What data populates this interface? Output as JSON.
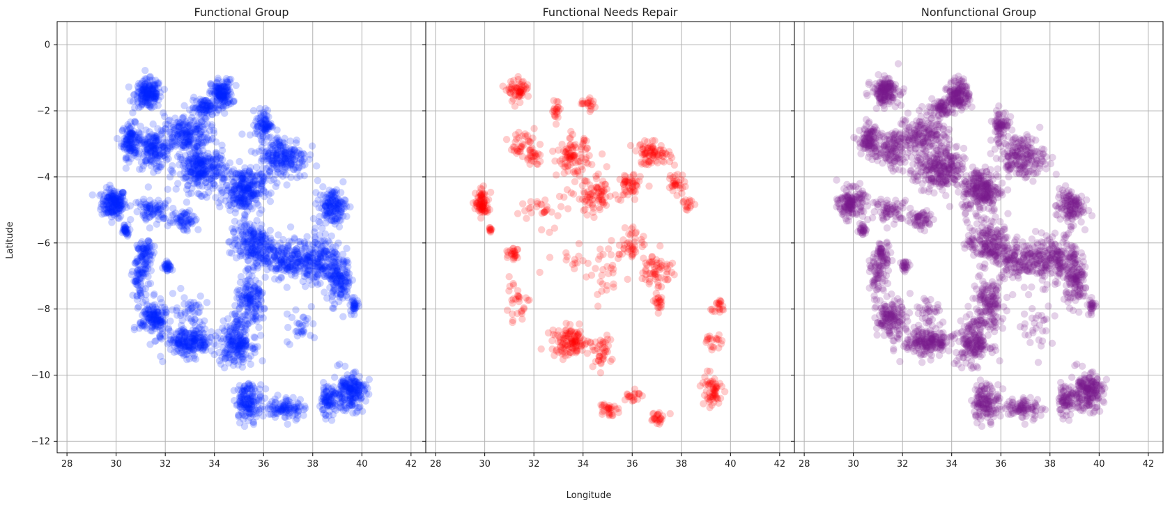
{
  "chart_data": [
    {
      "type": "scatter",
      "title": "Functional Group",
      "color": "#0022ff",
      "series": [
        {
          "regions": [
            [
              29.9,
              -4.8,
              0.45,
              0.4,
              180
            ],
            [
              30.6,
              -2.9,
              0.35,
              0.45,
              120
            ],
            [
              31.3,
              -1.5,
              0.5,
              0.4,
              180
            ],
            [
              31.5,
              -3.2,
              0.6,
              0.5,
              150
            ],
            [
              32.8,
              -2.7,
              0.9,
              0.5,
              200
            ],
            [
              34.3,
              -1.5,
              0.4,
              0.4,
              150
            ],
            [
              33.6,
              -1.9,
              0.5,
              0.25,
              80
            ],
            [
              33.5,
              -3.8,
              0.9,
              0.6,
              280
            ],
            [
              35.2,
              -4.4,
              0.7,
              0.6,
              260
            ],
            [
              36.0,
              -2.4,
              0.3,
              0.4,
              80
            ],
            [
              36.8,
              -3.4,
              0.9,
              0.6,
              220
            ],
            [
              38.8,
              -4.9,
              0.5,
              0.5,
              150
            ],
            [
              35.5,
              -6.0,
              0.8,
              0.6,
              200
            ],
            [
              36.9,
              -6.5,
              1.0,
              0.5,
              200
            ],
            [
              38.3,
              -6.5,
              0.8,
              0.7,
              200
            ],
            [
              39.1,
              -7.2,
              0.4,
              0.6,
              120
            ],
            [
              35.5,
              -7.8,
              0.6,
              0.7,
              150
            ],
            [
              34.9,
              -9.0,
              0.6,
              0.6,
              200
            ],
            [
              33.0,
              -9.0,
              0.9,
              0.4,
              220
            ],
            [
              31.5,
              -8.3,
              0.5,
              0.5,
              150
            ],
            [
              31.0,
              -7.0,
              0.3,
              0.6,
              80
            ],
            [
              31.2,
              -6.3,
              0.3,
              0.3,
              60
            ],
            [
              30.4,
              -5.6,
              0.15,
              0.15,
              30
            ],
            [
              32.1,
              -6.7,
              0.15,
              0.15,
              30
            ],
            [
              35.4,
              -10.8,
              0.5,
              0.5,
              150
            ],
            [
              36.9,
              -11.0,
              0.7,
              0.3,
              100
            ],
            [
              39.5,
              -10.5,
              0.6,
              0.5,
              200
            ],
            [
              38.6,
              -10.8,
              0.3,
              0.4,
              80
            ],
            [
              39.7,
              -7.9,
              0.15,
              0.2,
              30
            ],
            [
              31.5,
              -5.0,
              0.7,
              0.3,
              80
            ],
            [
              32.8,
              -5.3,
              0.5,
              0.3,
              60
            ],
            [
              33.0,
              -8.0,
              0.6,
              0.4,
              40
            ],
            [
              37.5,
              -8.5,
              0.6,
              0.6,
              30
            ]
          ]
        }
      ]
    },
    {
      "type": "scatter",
      "title": "Functional Needs Repair",
      "color": "#ff0000",
      "series": [
        {
          "regions": [
            [
              29.9,
              -4.8,
              0.25,
              0.35,
              80
            ],
            [
              31.4,
              -1.4,
              0.4,
              0.3,
              60
            ],
            [
              31.5,
              -3.0,
              0.5,
              0.4,
              40
            ],
            [
              32.0,
              -3.4,
              0.3,
              0.2,
              20
            ],
            [
              32.9,
              -2.0,
              0.15,
              0.3,
              20
            ],
            [
              33.6,
              -3.4,
              0.6,
              0.5,
              90
            ],
            [
              34.2,
              -1.8,
              0.4,
              0.2,
              20
            ],
            [
              34.5,
              -4.6,
              0.7,
              0.5,
              80
            ],
            [
              35.9,
              -4.3,
              0.4,
              0.4,
              50
            ],
            [
              36.8,
              -3.3,
              0.7,
              0.3,
              80
            ],
            [
              37.8,
              -4.2,
              0.3,
              0.3,
              30
            ],
            [
              38.3,
              -4.8,
              0.2,
              0.2,
              15
            ],
            [
              36.0,
              -6.0,
              0.5,
              0.5,
              40
            ],
            [
              37.0,
              -6.8,
              0.6,
              0.5,
              60
            ],
            [
              35.0,
              -7.0,
              0.6,
              0.7,
              30
            ],
            [
              37.1,
              -7.8,
              0.2,
              0.2,
              20
            ],
            [
              33.5,
              -9.0,
              0.7,
              0.4,
              120
            ],
            [
              34.7,
              -9.3,
              0.4,
              0.4,
              40
            ],
            [
              31.3,
              -7.8,
              0.5,
              0.6,
              30
            ],
            [
              31.2,
              -6.3,
              0.2,
              0.2,
              25
            ],
            [
              35.0,
              -11.0,
              0.3,
              0.2,
              30
            ],
            [
              36.0,
              -10.6,
              0.3,
              0.2,
              20
            ],
            [
              37.0,
              -11.3,
              0.3,
              0.2,
              25
            ],
            [
              39.2,
              -10.5,
              0.4,
              0.5,
              60
            ],
            [
              39.5,
              -7.9,
              0.3,
              0.2,
              20
            ],
            [
              39.3,
              -9.0,
              0.3,
              0.3,
              20
            ],
            [
              32.5,
              -5.0,
              1.0,
              0.4,
              30
            ],
            [
              30.3,
              -5.6,
              0.15,
              0.1,
              10
            ],
            [
              33.5,
              -6.5,
              1.0,
              0.5,
              15
            ]
          ]
        }
      ]
    },
    {
      "type": "scatter",
      "title": "Nonfunctional Group",
      "color": "#7a1a8a",
      "series": [
        {
          "regions": [
            [
              29.9,
              -4.8,
              0.45,
              0.4,
              150
            ],
            [
              30.6,
              -2.9,
              0.35,
              0.45,
              100
            ],
            [
              31.3,
              -1.4,
              0.5,
              0.35,
              160
            ],
            [
              31.5,
              -3.2,
              0.6,
              0.5,
              120
            ],
            [
              32.8,
              -2.7,
              0.9,
              0.5,
              180
            ],
            [
              34.3,
              -1.5,
              0.4,
              0.4,
              140
            ],
            [
              33.6,
              -1.9,
              0.5,
              0.25,
              70
            ],
            [
              33.5,
              -3.8,
              0.9,
              0.6,
              260
            ],
            [
              35.2,
              -4.4,
              0.7,
              0.6,
              240
            ],
            [
              36.0,
              -2.4,
              0.3,
              0.4,
              70
            ],
            [
              36.8,
              -3.4,
              0.9,
              0.6,
              200
            ],
            [
              38.8,
              -4.9,
              0.5,
              0.5,
              130
            ],
            [
              35.5,
              -6.0,
              0.8,
              0.6,
              190
            ],
            [
              36.9,
              -6.5,
              1.0,
              0.5,
              180
            ],
            [
              38.3,
              -6.5,
              0.8,
              0.7,
              180
            ],
            [
              39.1,
              -7.2,
              0.4,
              0.6,
              110
            ],
            [
              35.5,
              -7.8,
              0.6,
              0.7,
              140
            ],
            [
              34.9,
              -9.0,
              0.6,
              0.6,
              180
            ],
            [
              33.0,
              -9.0,
              0.9,
              0.4,
              200
            ],
            [
              31.5,
              -8.3,
              0.5,
              0.5,
              140
            ],
            [
              31.0,
              -7.0,
              0.3,
              0.6,
              70
            ],
            [
              31.2,
              -6.3,
              0.3,
              0.3,
              50
            ],
            [
              30.4,
              -5.6,
              0.15,
              0.15,
              25
            ],
            [
              32.1,
              -6.7,
              0.15,
              0.15,
              25
            ],
            [
              35.4,
              -10.8,
              0.5,
              0.5,
              140
            ],
            [
              36.9,
              -11.0,
              0.7,
              0.3,
              90
            ],
            [
              39.5,
              -10.5,
              0.6,
              0.5,
              200
            ],
            [
              38.6,
              -10.8,
              0.3,
              0.4,
              70
            ],
            [
              39.7,
              -7.9,
              0.15,
              0.2,
              25
            ],
            [
              31.5,
              -5.0,
              0.7,
              0.3,
              70
            ],
            [
              32.8,
              -5.3,
              0.5,
              0.3,
              55
            ],
            [
              33.0,
              -8.0,
              0.6,
              0.4,
              35
            ],
            [
              37.5,
              -8.5,
              0.6,
              0.6,
              30
            ]
          ]
        }
      ]
    }
  ],
  "axes": {
    "xlabel": "Longitude",
    "ylabel": "Latitude",
    "xlim": [
      27.6,
      42.6
    ],
    "ylim": [
      -12.35,
      0.7
    ],
    "xticks": [
      28,
      30,
      32,
      34,
      36,
      38,
      40,
      42
    ],
    "yticks": [
      0,
      -2,
      -4,
      -6,
      -8,
      -10,
      -12
    ],
    "grid": true,
    "sharey": true
  }
}
